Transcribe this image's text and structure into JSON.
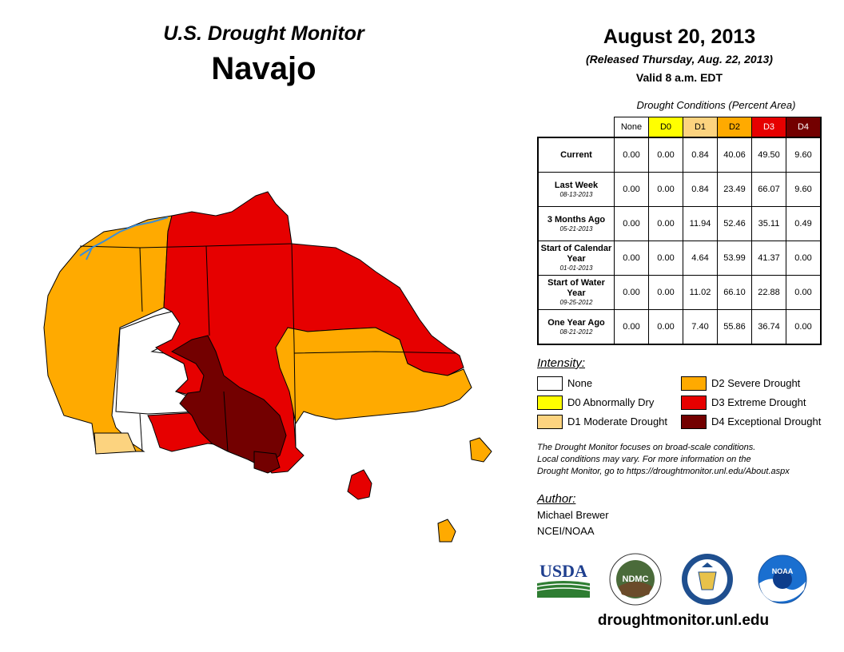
{
  "header": {
    "title_line1": "U.S. Drought Monitor",
    "title_line2": "Navajo",
    "date": "August 20, 2013",
    "released": "(Released Thursday, Aug. 22, 2013)",
    "valid": "Valid 8 a.m. EDT"
  },
  "table": {
    "caption": "Drought Conditions (Percent Area)",
    "columns": [
      {
        "label": "None",
        "color": "#ffffff"
      },
      {
        "label": "D0",
        "color": "#ffff00"
      },
      {
        "label": "D1",
        "color": "#fcd37f"
      },
      {
        "label": "D2",
        "color": "#ffaa00"
      },
      {
        "label": "D3",
        "color": "#e60000"
      },
      {
        "label": "D4",
        "color": "#730000"
      }
    ],
    "rows": [
      {
        "label": "Current",
        "date": "",
        "values": [
          "0.00",
          "0.00",
          "0.84",
          "40.06",
          "49.50",
          "9.60"
        ]
      },
      {
        "label": "Last Week",
        "date": "08-13-2013",
        "values": [
          "0.00",
          "0.00",
          "0.84",
          "23.49",
          "66.07",
          "9.60"
        ]
      },
      {
        "label": "3 Months Ago",
        "date": "05-21-2013",
        "values": [
          "0.00",
          "0.00",
          "11.94",
          "52.46",
          "35.11",
          "0.49"
        ]
      },
      {
        "label": "Start of Calendar Year",
        "date": "01-01-2013",
        "values": [
          "0.00",
          "0.00",
          "4.64",
          "53.99",
          "41.37",
          "0.00"
        ]
      },
      {
        "label": "Start of Water Year",
        "date": "09-25-2012",
        "values": [
          "0.00",
          "0.00",
          "11.02",
          "66.10",
          "22.88",
          "0.00"
        ]
      },
      {
        "label": "One Year Ago",
        "date": "08-21-2012",
        "values": [
          "0.00",
          "0.00",
          "7.40",
          "55.86",
          "36.74",
          "0.00"
        ]
      }
    ]
  },
  "legend": {
    "title": "Intensity:",
    "items": [
      {
        "label": "None",
        "color": "#ffffff"
      },
      {
        "label": "D0 Abnormally Dry",
        "color": "#ffff00"
      },
      {
        "label": "D1 Moderate Drought",
        "color": "#fcd37f"
      },
      {
        "label": "D2 Severe Drought",
        "color": "#ffaa00"
      },
      {
        "label": "D3 Extreme Drought",
        "color": "#e60000"
      },
      {
        "label": "D4 Exceptional Drought",
        "color": "#730000"
      }
    ]
  },
  "note": {
    "line1": "The Drought Monitor focuses on broad-scale conditions.",
    "line2": "Local conditions may vary. For more information on the",
    "line3": "Drought Monitor, go to https://droughtmonitor.unl.edu/About.aspx"
  },
  "author": {
    "title": "Author:",
    "name": "Michael Brewer",
    "org": "NCEI/NOAA"
  },
  "logos": {
    "usda": "USDA",
    "ndmc": "NDMC",
    "noaa": "NOAA"
  },
  "footer": {
    "url": "droughtmonitor.unl.edu"
  }
}
